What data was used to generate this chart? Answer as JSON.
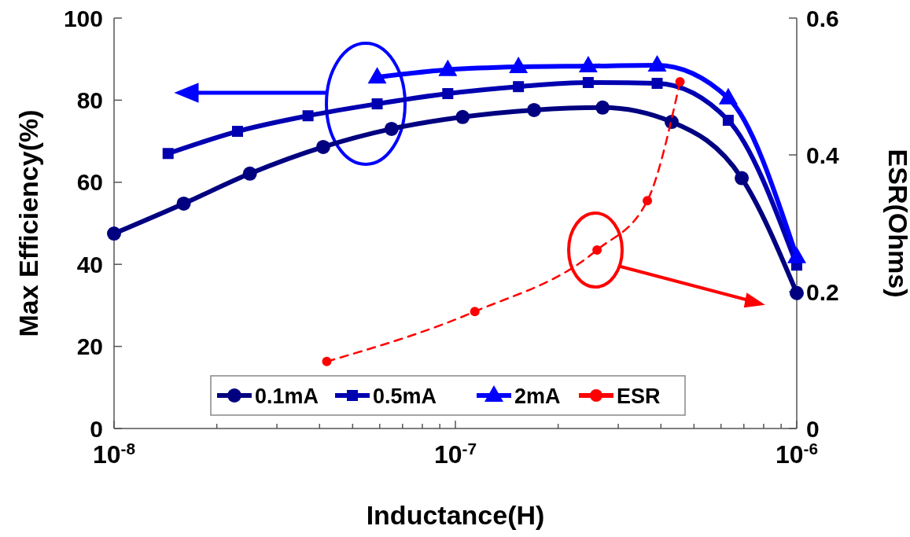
{
  "chart_data": {
    "type": "line",
    "xlabel": "Inductance(H)",
    "ylabel": "Max Efficiency(%)",
    "y2label": "ESR(Ohms)",
    "log": "x",
    "xlim": [
      1e-08,
      1e-06
    ],
    "xticks": [
      {
        "value": 1e-08,
        "label": "10$^{-8}$"
      },
      {
        "value": 2e-08,
        "label": null
      },
      {
        "value": 3e-08,
        "label": null
      },
      {
        "value": 4e-08,
        "label": null
      },
      {
        "value": 5e-08,
        "label": null
      },
      {
        "value": 6e-08,
        "label": null
      },
      {
        "value": 7e-08,
        "label": null
      },
      {
        "value": 8e-08,
        "label": null
      },
      {
        "value": 9e-08,
        "label": null
      },
      {
        "value": 1e-07,
        "label": "10$^{-7}$"
      },
      {
        "value": 2e-07,
        "label": null
      },
      {
        "value": 3e-07,
        "label": null
      },
      {
        "value": 4e-07,
        "label": null
      },
      {
        "value": 5e-07,
        "label": null
      },
      {
        "value": 6e-07,
        "label": null
      },
      {
        "value": 7e-07,
        "label": null
      },
      {
        "value": 8e-07,
        "label": null
      },
      {
        "value": 9e-07,
        "label": null
      },
      {
        "value": 1e-06,
        "label": "10$^{-6}$"
      }
    ],
    "ylim": [
      0,
      100
    ],
    "yticks": [
      0,
      20,
      40,
      60,
      80,
      100
    ],
    "y2lim": [
      0,
      0.6
    ],
    "y2ticks": [
      0,
      0.2,
      0.4,
      0.6
    ],
    "legend": "bottom",
    "series": [
      {
        "name": "0.1mA",
        "color": "#000080",
        "marker": "circle",
        "line_style": "solid",
        "x": [
          1e-08,
          1.6e-08,
          2.5e-08,
          4.1e-08,
          6.5e-08,
          1.05e-07,
          1.7e-07,
          2.7e-07,
          4.3e-07,
          6.9e-07,
          1e-06
        ],
        "values": [
          47.5,
          54.8,
          62.1,
          68.6,
          73.0,
          75.9,
          77.6,
          78.2,
          74.7,
          61.0,
          33.0
        ]
      },
      {
        "name": "0.5mA",
        "color": "#0000b0",
        "marker": "square",
        "line_style": "solid",
        "x": [
          1.44e-08,
          2.3e-08,
          3.7e-08,
          5.9e-08,
          9.5e-08,
          1.53e-07,
          2.45e-07,
          3.9e-07,
          6.3e-07,
          1e-06
        ],
        "values": [
          67.0,
          72.4,
          76.2,
          79.1,
          81.6,
          83.3,
          84.3,
          84.1,
          75.1,
          39.8
        ]
      },
      {
        "name": "2mA",
        "color": "#0000ff",
        "marker": "triangle",
        "line_style": "solid",
        "x": [
          5.9e-08,
          9.5e-08,
          1.53e-07,
          2.45e-07,
          3.9e-07,
          6.3e-07,
          1e-06
        ],
        "values": [
          85.6,
          87.4,
          88.1,
          88.3,
          88.5,
          80.5,
          41.8
        ]
      },
      {
        "name": "ESR",
        "color": "#ff0000",
        "marker": "circle",
        "line_style": "dashed",
        "axis": "y2",
        "x": [
          4.2e-08,
          1.14e-07,
          2.6e-07,
          3.65e-07,
          4.55e-07
        ],
        "values": [
          0.098,
          0.171,
          0.261,
          0.333,
          0.507
        ]
      }
    ]
  }
}
